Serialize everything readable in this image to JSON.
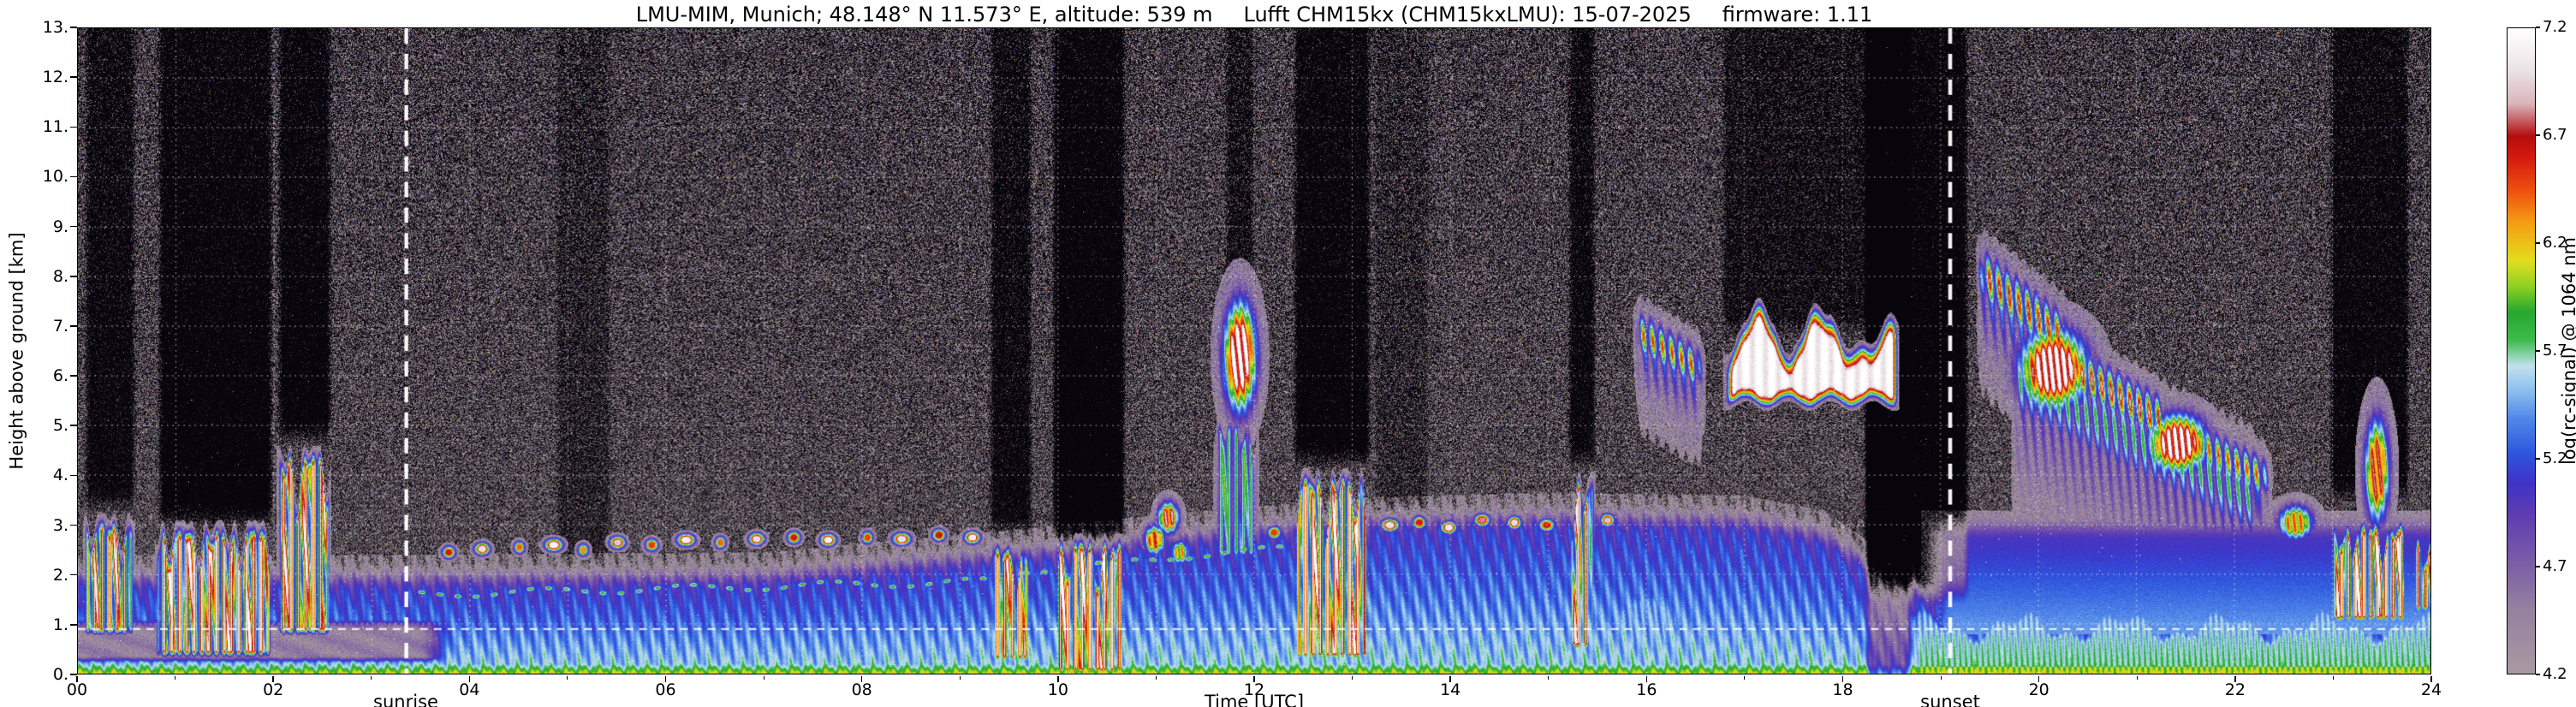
{
  "header": {
    "title_station": "LMU-MIM, Munich; 48.148° N 11.573° E, altitude: 539 m",
    "title_instrument": "Lufft CHM15kx (CHM15kxLMU): 15-07-2025",
    "title_firmware": "firmware: 1.11"
  },
  "chart_data": {
    "type": "heatmap",
    "title": "LMU-MIM, Munich; 48.148° N 11.573° E, altitude: 539 m   Lufft CHM15kx (CHM15kxLMU): 15-07-2025   firmware: 1.11",
    "xlabel": "Time [UTC]",
    "ylabel": "Height above ground [km]",
    "colorbar_label": "log(rc-signal) @ 1064 nm",
    "xlim": [
      0,
      24
    ],
    "ylim": [
      0,
      13
    ],
    "clim": [
      4.2,
      7.2
    ],
    "xtick_hours": [
      0,
      2,
      4,
      6,
      8,
      10,
      12,
      14,
      16,
      18,
      20,
      22,
      24
    ],
    "xticks": [
      "00",
      "02",
      "04",
      "06",
      "08",
      "10",
      "12",
      "14",
      "16",
      "18",
      "20",
      "22",
      "24"
    ],
    "ytick_km": [
      0,
      1,
      2,
      3,
      4,
      5,
      6,
      7,
      8,
      9,
      10,
      11,
      12,
      13
    ],
    "yticks": [
      "0.",
      "1.",
      "2.",
      "3.",
      "4.",
      "5.",
      "6.",
      "7.",
      "8.",
      "9.",
      "10.",
      "11.",
      "12.",
      "13."
    ],
    "colorbar_ticks": [
      7.2,
      6.7,
      6.2,
      5.7,
      5.2,
      4.7,
      4.2
    ],
    "colorbar_tick_labels": [
      "7.2",
      "6.7",
      "6.2",
      "5.7",
      "5.2",
      "4.7",
      "4.2"
    ],
    "grid": {
      "style": "dotted-white",
      "hour_step": 1,
      "km_step": 1
    },
    "sunrise_label": "sunrise",
    "sunset_label": "sunset",
    "sunrise_utc": 3.35,
    "sunset_utc": 19.1,
    "marker_line_km": 0.9,
    "colormap_stops": [
      [
        4.2,
        "#a89aa2"
      ],
      [
        4.5,
        "#94819f"
      ],
      [
        4.72,
        "#7b5ca8"
      ],
      [
        4.95,
        "#5c3cb2"
      ],
      [
        5.08,
        "#3f33c6"
      ],
      [
        5.22,
        "#2e55dd"
      ],
      [
        5.38,
        "#4f86e8"
      ],
      [
        5.52,
        "#8fc0ee"
      ],
      [
        5.63,
        "#c2e2ec"
      ],
      [
        5.75,
        "#3dbb4e"
      ],
      [
        5.88,
        "#27a82f"
      ],
      [
        6.0,
        "#8ed122"
      ],
      [
        6.12,
        "#e3de1e"
      ],
      [
        6.3,
        "#f49c12"
      ],
      [
        6.45,
        "#ee4f10"
      ],
      [
        6.6,
        "#d41a0e"
      ],
      [
        6.7,
        "#b40d0d"
      ],
      [
        6.85,
        "#d9b4ba"
      ],
      [
        7.0,
        "#eae2e4"
      ],
      [
        7.2,
        "#ffffff"
      ]
    ],
    "bl_height_profile": {
      "hours": [
        0,
        3.5,
        7,
        9,
        11,
        13,
        15,
        17,
        17.8,
        18.4,
        19,
        20,
        24
      ],
      "km": [
        1.7,
        1.7,
        1.75,
        2.1,
        2.5,
        2.85,
        2.95,
        2.9,
        2.6,
        1.8,
        1.3,
        1.2,
        1.35
      ]
    },
    "morning_band": {
      "t0": 0.0,
      "t1": 3.7,
      "zb": 0.3,
      "zt": 1.0,
      "value": 4.42
    },
    "evening_layer": {
      "t0": 18.55,
      "t1": 24.0,
      "h_base": 1.05,
      "s_base": 5.55
    },
    "evening_haze": {
      "t0": 18.8,
      "t1": 24.0,
      "z0": 1.0,
      "z1": 2.9,
      "s0": 5.42,
      "s1": 5.0
    },
    "toplines": [
      {
        "t0": 3.4,
        "t1": 9.45,
        "z0": 1.6,
        "slope": 0.045,
        "wig": 0.07,
        "peak": 5.95
      },
      {
        "t0": 9.55,
        "t1": 12.35,
        "z0": 2.05,
        "slope": 0.18,
        "wig": 0.05,
        "peak": 6.0
      }
    ],
    "clouds": [
      {
        "style": "conv",
        "t0": 0.05,
        "t1": 0.58,
        "zb": 0.85,
        "zt": 3.4,
        "peak": 7.15
      },
      {
        "style": "conv",
        "t0": 0.78,
        "t1": 1.98,
        "zb": 0.4,
        "zt": 3.3,
        "peak": 7.3
      },
      {
        "style": "conv",
        "t0": 2.02,
        "t1": 2.58,
        "zb": 0.85,
        "zt": 4.95,
        "peak": 7.2
      },
      {
        "style": "conv",
        "t0": 9.28,
        "t1": 9.72,
        "zb": 0.3,
        "zt": 2.9,
        "peak": 7.2
      },
      {
        "style": "conv",
        "t0": 9.95,
        "t1": 10.68,
        "zb": 0.05,
        "zt": 3.05,
        "peak": 7.3
      },
      {
        "style": "conv",
        "t0": 11.58,
        "t1": 12.05,
        "zb": 2.4,
        "zt": 5.5,
        "peak": 6.0
      },
      {
        "style": "blob",
        "tc": 11.85,
        "zc": 6.4,
        "w": 0.16,
        "th": 1.05,
        "peak": 7.3
      },
      {
        "style": "conv",
        "t0": 12.4,
        "t1": 13.18,
        "zb": 0.35,
        "zt": 4.5,
        "peak": 7.3
      },
      {
        "style": "conv",
        "t0": 15.2,
        "t1": 15.48,
        "zb": 0.55,
        "zt": 4.4,
        "peak": 7.2
      },
      {
        "style": "cirr",
        "t0": 15.85,
        "t1": 16.62,
        "z0": 6.95,
        "z1": 6.05,
        "th": 0.45,
        "peak": 6.6
      },
      {
        "style": "band",
        "t0": 16.78,
        "t1": 18.58,
        "zb": 5.6,
        "zt": 6.55,
        "peak": 7.3,
        "spike_t0": 17.0,
        "spike_t1": 17.85
      },
      {
        "style": "cirr",
        "t0": 19.35,
        "t1": 20.35,
        "z0": 8.15,
        "z1": 6.6,
        "th": 0.55,
        "peak": 6.85
      },
      {
        "style": "blob",
        "tc": 20.15,
        "zc": 6.15,
        "w": 0.33,
        "th": 0.75,
        "peak": 7.3
      },
      {
        "style": "cirr",
        "t0": 20.2,
        "t1": 21.35,
        "z0": 6.3,
        "z1": 5.0,
        "th": 0.5,
        "peak": 6.95
      },
      {
        "style": "blob",
        "tc": 21.42,
        "zc": 4.65,
        "w": 0.28,
        "th": 0.55,
        "peak": 7.25
      },
      {
        "style": "cirr",
        "t0": 21.35,
        "t1": 22.4,
        "z0": 4.9,
        "z1": 3.85,
        "th": 0.45,
        "peak": 6.55
      },
      {
        "style": "cirr",
        "t0": 19.7,
        "t1": 22.3,
        "z0": 6.0,
        "z1": 3.4,
        "th": 0.85,
        "peak": 5.95
      },
      {
        "style": "blob",
        "tc": 22.62,
        "zc": 3.05,
        "w": 0.17,
        "th": 0.33,
        "peak": 6.5
      },
      {
        "style": "conv",
        "t0": 22.98,
        "t1": 23.78,
        "zb": 1.1,
        "zt": 3.3,
        "peak": 7.3
      },
      {
        "style": "blob",
        "tc": 23.45,
        "zc": 4.1,
        "w": 0.12,
        "th": 1.0,
        "peak": 6.8
      },
      {
        "style": "conv",
        "t0": 23.8,
        "t1": 24.05,
        "zb": 1.3,
        "zt": 2.95,
        "peak": 7.05
      },
      {
        "style": "blob",
        "tc": 10.98,
        "zc": 2.7,
        "w": 0.1,
        "th": 0.28,
        "peak": 6.7
      },
      {
        "style": "blob",
        "tc": 11.12,
        "zc": 3.15,
        "w": 0.1,
        "th": 0.3,
        "peak": 6.9
      },
      {
        "style": "blob",
        "tc": 11.24,
        "zc": 2.45,
        "w": 0.08,
        "th": 0.22,
        "peak": 6.4
      },
      {
        "style": "blob",
        "tc": 16.0,
        "zc": 1.0,
        "w": 0.5,
        "th": 0.85,
        "peak": 5.55
      }
    ],
    "cumulus": [
      [
        3.78,
        2.45,
        0.06,
        6.6
      ],
      [
        4.12,
        2.52,
        0.07,
        7.0
      ],
      [
        4.5,
        2.55,
        0.05,
        6.4
      ],
      [
        4.85,
        2.6,
        0.08,
        7.1
      ],
      [
        5.15,
        2.5,
        0.05,
        6.3
      ],
      [
        5.5,
        2.65,
        0.07,
        6.9
      ],
      [
        5.85,
        2.6,
        0.06,
        6.5
      ],
      [
        6.2,
        2.7,
        0.08,
        7.1
      ],
      [
        6.55,
        2.65,
        0.05,
        6.4
      ],
      [
        6.92,
        2.72,
        0.07,
        7.0
      ],
      [
        7.3,
        2.75,
        0.06,
        6.6
      ],
      [
        7.65,
        2.7,
        0.07,
        7.1
      ],
      [
        8.05,
        2.75,
        0.05,
        6.5
      ],
      [
        8.4,
        2.72,
        0.08,
        7.0
      ],
      [
        8.78,
        2.8,
        0.06,
        6.7
      ],
      [
        9.12,
        2.75,
        0.07,
        7.05
      ],
      [
        12.2,
        2.85,
        0.06,
        6.5
      ],
      [
        13.38,
        3.0,
        0.08,
        7.0
      ],
      [
        13.68,
        3.05,
        0.06,
        6.6
      ],
      [
        13.98,
        2.95,
        0.07,
        7.05
      ],
      [
        14.32,
        3.1,
        0.07,
        6.8
      ],
      [
        14.65,
        3.05,
        0.06,
        7.0
      ],
      [
        14.98,
        3.0,
        0.07,
        6.6
      ],
      [
        15.6,
        3.1,
        0.06,
        6.9
      ]
    ],
    "shadows": [
      {
        "t0": 0.05,
        "t1": 0.6,
        "z0": 3.4,
        "amt": 0.4
      },
      {
        "t0": 0.8,
        "t1": 2.0,
        "z0": 3.1,
        "amt": 0.5
      },
      {
        "t0": 2.02,
        "t1": 2.6,
        "z0": 4.8,
        "amt": 0.5
      },
      {
        "t0": 9.28,
        "t1": 9.75,
        "z0": 2.9,
        "amt": 0.38
      },
      {
        "t0": 9.92,
        "t1": 10.7,
        "z0": 2.6,
        "amt": 0.55
      },
      {
        "t0": 11.68,
        "t1": 12.02,
        "z0": 7.6,
        "amt": 0.3
      },
      {
        "t0": 12.38,
        "t1": 13.2,
        "z0": 4.3,
        "amt": 0.5
      },
      {
        "t0": 15.18,
        "t1": 15.5,
        "z0": 4.3,
        "amt": 0.42
      },
      {
        "t0": 16.75,
        "t1": 18.6,
        "z0": 6.9,
        "amt": 0.32
      },
      {
        "t0": 18.22,
        "t1": 18.72,
        "z0": -1,
        "amt": 0.7
      },
      {
        "t0": 18.2,
        "t1": 19.3,
        "z0": 1.6,
        "amt": 0.55
      },
      {
        "t0": 22.95,
        "t1": 23.8,
        "z0": 3.6,
        "amt": 0.45
      },
      {
        "t0": 4.85,
        "t1": 5.45,
        "z0": 2.2,
        "amt": 0.16
      },
      {
        "t0": 13.2,
        "t1": 13.8,
        "z0": 3.2,
        "amt": 0.14
      }
    ],
    "noise": {
      "base": 3.95,
      "amp0": 0.3,
      "amp_z": 0.55,
      "speckle_p0": 0.005,
      "speckle_pz": 0.015
    }
  }
}
